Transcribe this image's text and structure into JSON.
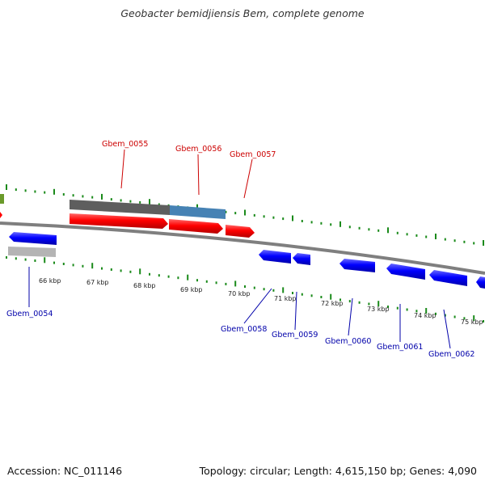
{
  "title": "Geobacter bemidjiensis Bem, complete genome",
  "footer": {
    "accession": "Accession: NC_011146",
    "stats": "Topology: circular; Length: 4,615,150 bp; Genes: 4,090"
  },
  "colors": {
    "backbone": "#7f7f7f",
    "tick": "#1a8a1a",
    "forward_gene": "#ff0000",
    "reverse_gene": "#0000ff",
    "label_forward": "#cc0000",
    "label_reverse": "#0000aa"
  },
  "ticks": [
    "66 kbp",
    "67 kbp",
    "68 kbp",
    "69 kbp",
    "70 kbp",
    "71 kbp",
    "72 kbp",
    "73 kbp",
    "74 kbp",
    "75 kbp"
  ],
  "forward_labels": [
    "Gbem_0055",
    "Gbem_0056",
    "Gbem_0057"
  ],
  "reverse_labels": [
    "Gbem_0054",
    "Gbem_0058",
    "Gbem_0059",
    "Gbem_0060",
    "Gbem_0061",
    "Gbem_0062"
  ]
}
